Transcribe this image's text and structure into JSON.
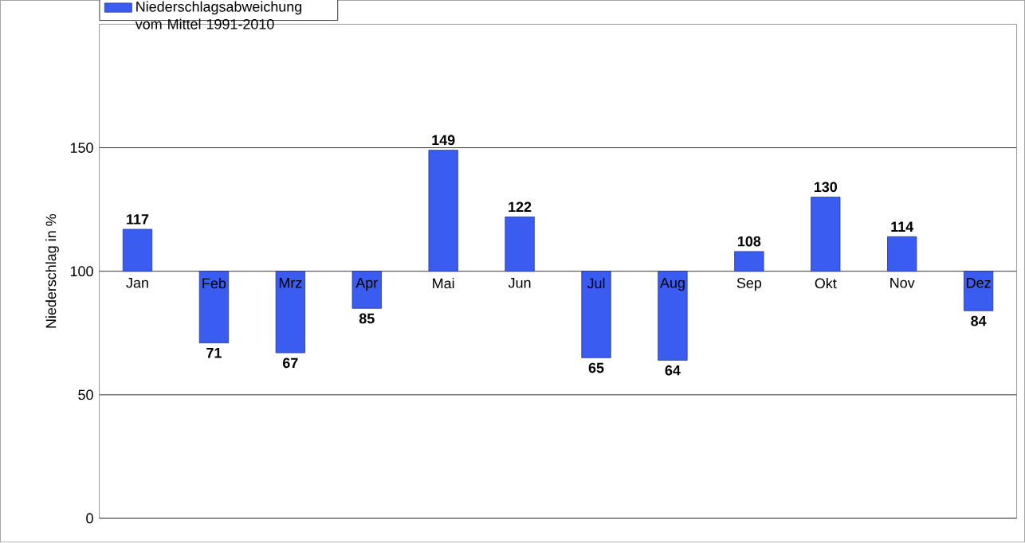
{
  "chart_data": {
    "type": "bar",
    "ylabel": "Niederschlag in %",
    "categories": [
      "Jan",
      "Feb",
      "Mrz",
      "Apr",
      "Mai",
      "Jun",
      "Jul",
      "Aug",
      "Sep",
      "Okt",
      "Nov",
      "Dez"
    ],
    "series": [
      {
        "name": "Niederschlagsabweichung vom Mittel 1991-2010",
        "color": "#3a5cf0",
        "base": [
          100,
          100,
          100,
          100,
          100,
          100,
          100,
          100,
          100,
          100,
          100,
          100
        ],
        "values": [
          17,
          -29,
          -33,
          -15,
          49,
          22,
          -35,
          -36,
          8,
          30,
          14,
          -16
        ],
        "value_labels": [
          "117",
          "71",
          "67",
          "85",
          "149",
          "122",
          "65",
          "64",
          "108",
          "130",
          "114",
          "84"
        ]
      }
    ],
    "ylim": [
      0,
      200
    ],
    "yticks": [
      0,
      50,
      100,
      150
    ],
    "grid": "y",
    "legend": "top left"
  }
}
